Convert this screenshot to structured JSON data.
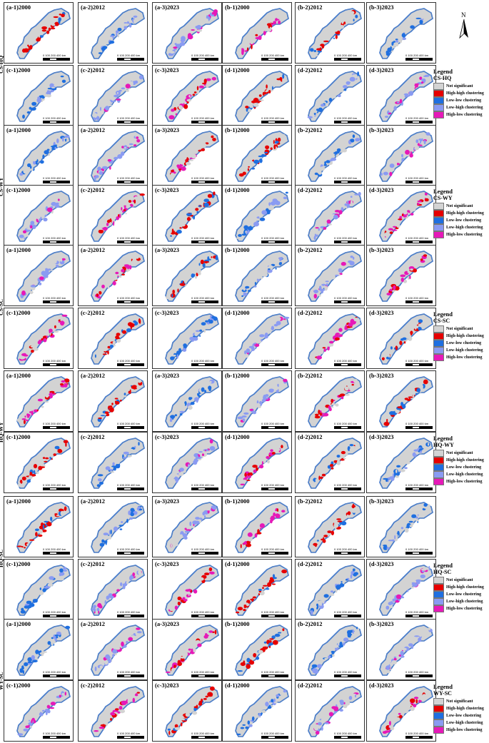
{
  "north_label": "N",
  "scale_text": "0 100 200    400",
  "scale_unit": "km",
  "colors": {
    "not_significant": "#d3d3d3",
    "high_high": "#e60000",
    "low_low": "#1f6fe0",
    "low_high": "#8a9bf2",
    "high_low": "#e619b8",
    "boundary": "#2a6fd6"
  },
  "legend_title": "Legend",
  "legend_items": [
    {
      "label": "Not significant",
      "color": "#d3d3d3"
    },
    {
      "label": "High-high clustering",
      "color": "#e60000"
    },
    {
      "label": "Low-low clustering",
      "color": "#1f6fe0"
    },
    {
      "label": "Low-high clustering",
      "color": "#8a9bf2"
    },
    {
      "label": "High-low clustering",
      "color": "#e619b8"
    }
  ],
  "groups": [
    {
      "name": "CS-HQ",
      "rows": [
        [
          "(a-1)2000",
          "(a-2)2012",
          "(a-3)2023",
          "(b-1)2000",
          "(b-2)2012",
          "(b-3)2023"
        ],
        [
          "(c-1)2000",
          "(c-2)2012",
          "(c-3)2023",
          "(d-1)2000",
          "(d-2)2012",
          "(d-3)2023"
        ]
      ]
    },
    {
      "name": "CS-WY",
      "rows": [
        [
          "(a-1)2000",
          "(a-2)2012",
          "(a-3)2023",
          "(b-1)2000",
          "(b-2)2012",
          "(b-3)2023"
        ],
        [
          "(c-1)2000",
          "(c-2)2012",
          "(c-3)2023",
          "(d-1)2000",
          "(d-2)2012",
          "(d-3)2023"
        ]
      ]
    },
    {
      "name": "CS-SC",
      "rows": [
        [
          "(a-1)2000",
          "(a-2)2012",
          "(a-3)2023",
          "(b-1)2000",
          "(b-2)2012",
          "(b-3)2023"
        ],
        [
          "(c-1)2000",
          "(c-2)2012",
          "(c-3)2023",
          "(d-1)2000",
          "(d-2)2012",
          "(d-3)2023"
        ]
      ]
    },
    {
      "name": "HQ-WY",
      "rows": [
        [
          "(a-1)2000",
          "(a-2)2012",
          "(a-3)2023",
          "(b-1)2000",
          "(b-2)2012",
          "(b-3)2023"
        ],
        [
          "(c-1)2000",
          "(c-2)2012",
          "(c-3)2023",
          "(d-1)2000",
          "(d-2)2012",
          "(d-3)2023"
        ]
      ]
    },
    {
      "name": "HQ-SC",
      "rows": [
        [
          "(a-1)2000",
          "(a-2)2012",
          "(a-3)2023",
          "(b-1)2000",
          "(b-2)2012",
          "(b-3)2023"
        ],
        [
          "(c-1)2000",
          "(c-2)2012",
          "(c-3)2023",
          "(d-1)2000",
          "(d-2)2012",
          "(d-3)2023"
        ]
      ]
    },
    {
      "name": "WY-SC",
      "rows": [
        [
          "(a-1)2000",
          "(a-2)2012",
          "(a-3)2023",
          "(b-1)2000",
          "(b-2)2012",
          "(b-3)2023"
        ],
        [
          "(c-1)2000",
          "(c-2)2012",
          "(c-3)2023",
          "(d-1)2000",
          "(d-2)2012",
          "(d-3)2023"
        ]
      ]
    }
  ]
}
